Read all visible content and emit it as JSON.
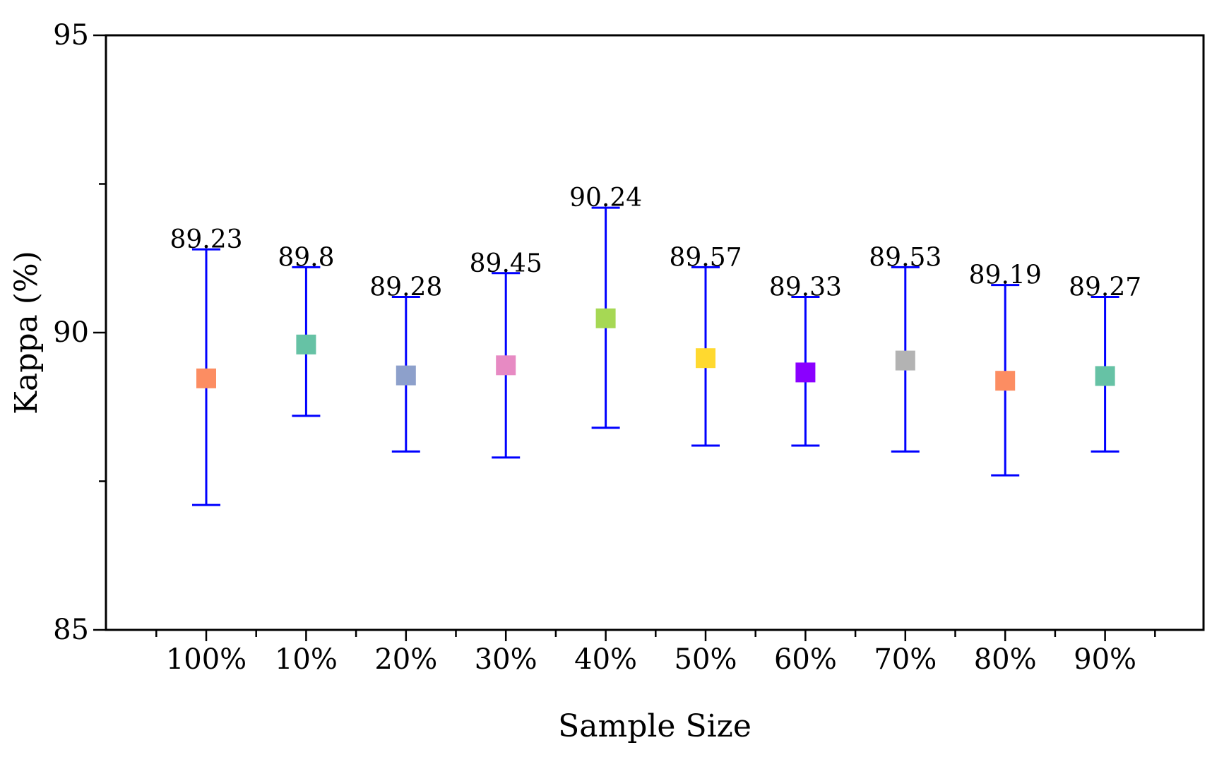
{
  "chart_data": {
    "type": "scatter",
    "title": "",
    "xlabel": "Sample Size",
    "ylabel": "Kappa (%)",
    "ylim": [
      85,
      95
    ],
    "yticks": [
      85,
      90,
      95
    ],
    "grid": false,
    "legend": "none",
    "categories": [
      "100%",
      "10%",
      "20%",
      "30%",
      "40%",
      "50%",
      "60%",
      "70%",
      "80%",
      "90%"
    ],
    "values": [
      89.23,
      89.8,
      89.28,
      89.45,
      90.24,
      89.57,
      89.33,
      89.53,
      89.19,
      89.27
    ],
    "value_labels": [
      "89.23",
      "89.8",
      "89.28",
      "89.45",
      "90.24",
      "89.57",
      "89.33",
      "89.53",
      "89.19",
      "89.27"
    ],
    "error_low": [
      87.1,
      88.6,
      88.0,
      87.9,
      88.4,
      88.1,
      88.1,
      88.0,
      87.6,
      88.0
    ],
    "error_high": [
      91.4,
      91.1,
      90.6,
      91.0,
      92.1,
      91.1,
      90.6,
      91.1,
      90.8,
      90.6
    ],
    "marker_colors": [
      "#FC8D62",
      "#66C2A5",
      "#8DA0CB",
      "#E78AC3",
      "#A6D854",
      "#FFD92F",
      "#8A00FF",
      "#B3B3B3",
      "#FC8D62",
      "#66C2A5"
    ],
    "error_bar_color": "#0000FF"
  }
}
